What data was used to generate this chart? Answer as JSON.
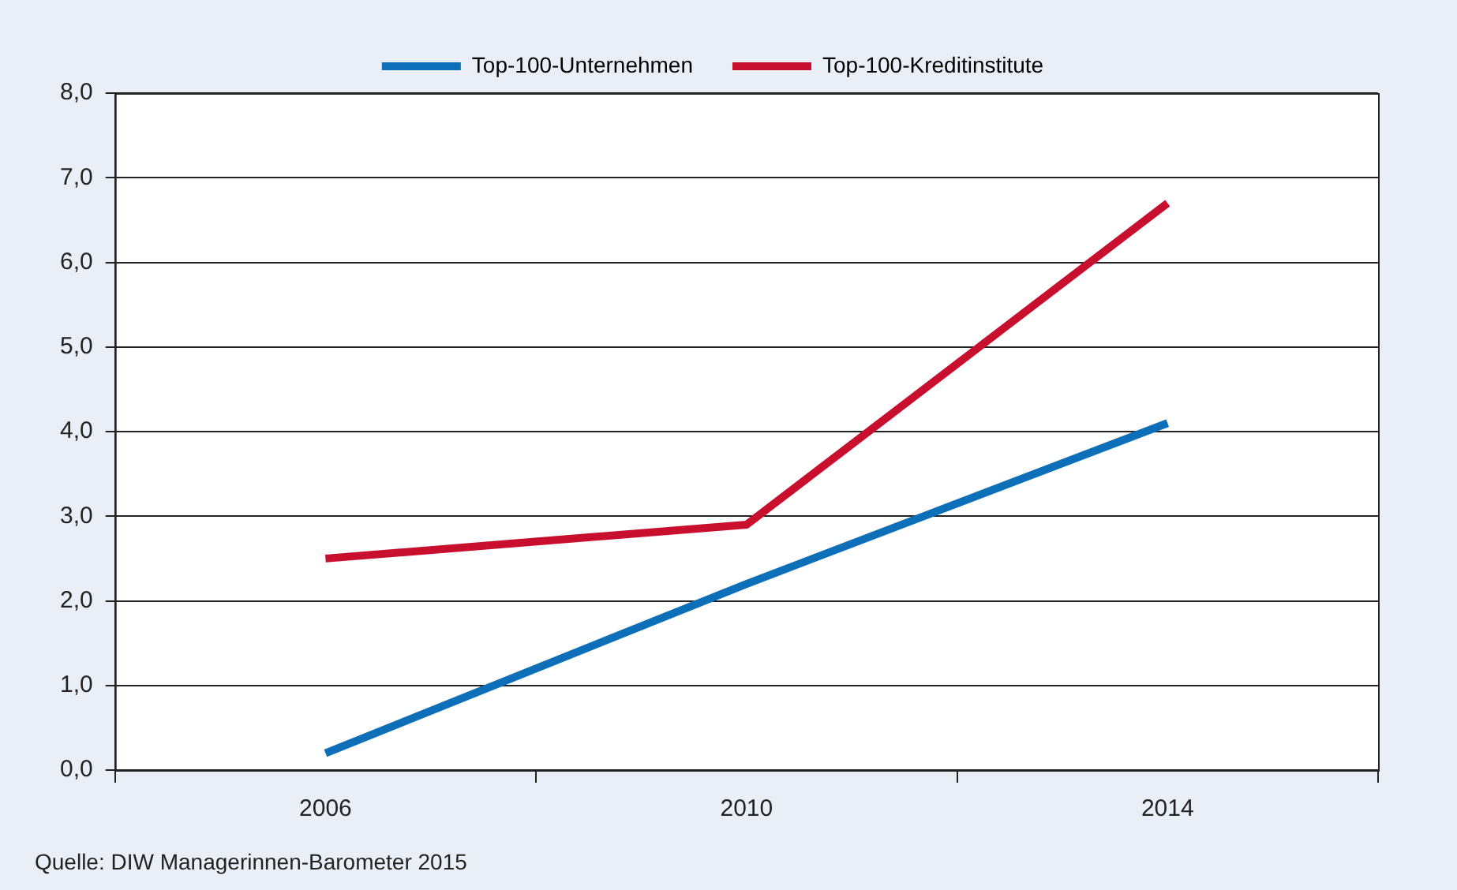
{
  "chart_data": {
    "type": "line",
    "categories": [
      "2006",
      "2010",
      "2014"
    ],
    "series": [
      {
        "name": "Top-100-Unternehmen",
        "color": "#0d6fb8",
        "values": [
          0.2,
          2.2,
          4.1
        ]
      },
      {
        "name": "Top-100-Kreditinstitute",
        "color": "#c8102e",
        "values": [
          2.5,
          2.9,
          6.7
        ]
      }
    ],
    "ylim": [
      0,
      8
    ],
    "yticks": [
      {
        "value": 0,
        "label": "0,0"
      },
      {
        "value": 1,
        "label": "1,0"
      },
      {
        "value": 2,
        "label": "2,0"
      },
      {
        "value": 3,
        "label": "3,0"
      },
      {
        "value": 4,
        "label": "4,0"
      },
      {
        "value": 5,
        "label": "5,0"
      },
      {
        "value": 6,
        "label": "6,0"
      },
      {
        "value": 7,
        "label": "7,0"
      },
      {
        "value": 8,
        "label": "8,0"
      }
    ],
    "grid": "y",
    "legend": "top",
    "marker": "none",
    "line_style": "solid",
    "annotations": [
      "Quelle: DIW Managerinnen-Barometer 2015"
    ]
  }
}
